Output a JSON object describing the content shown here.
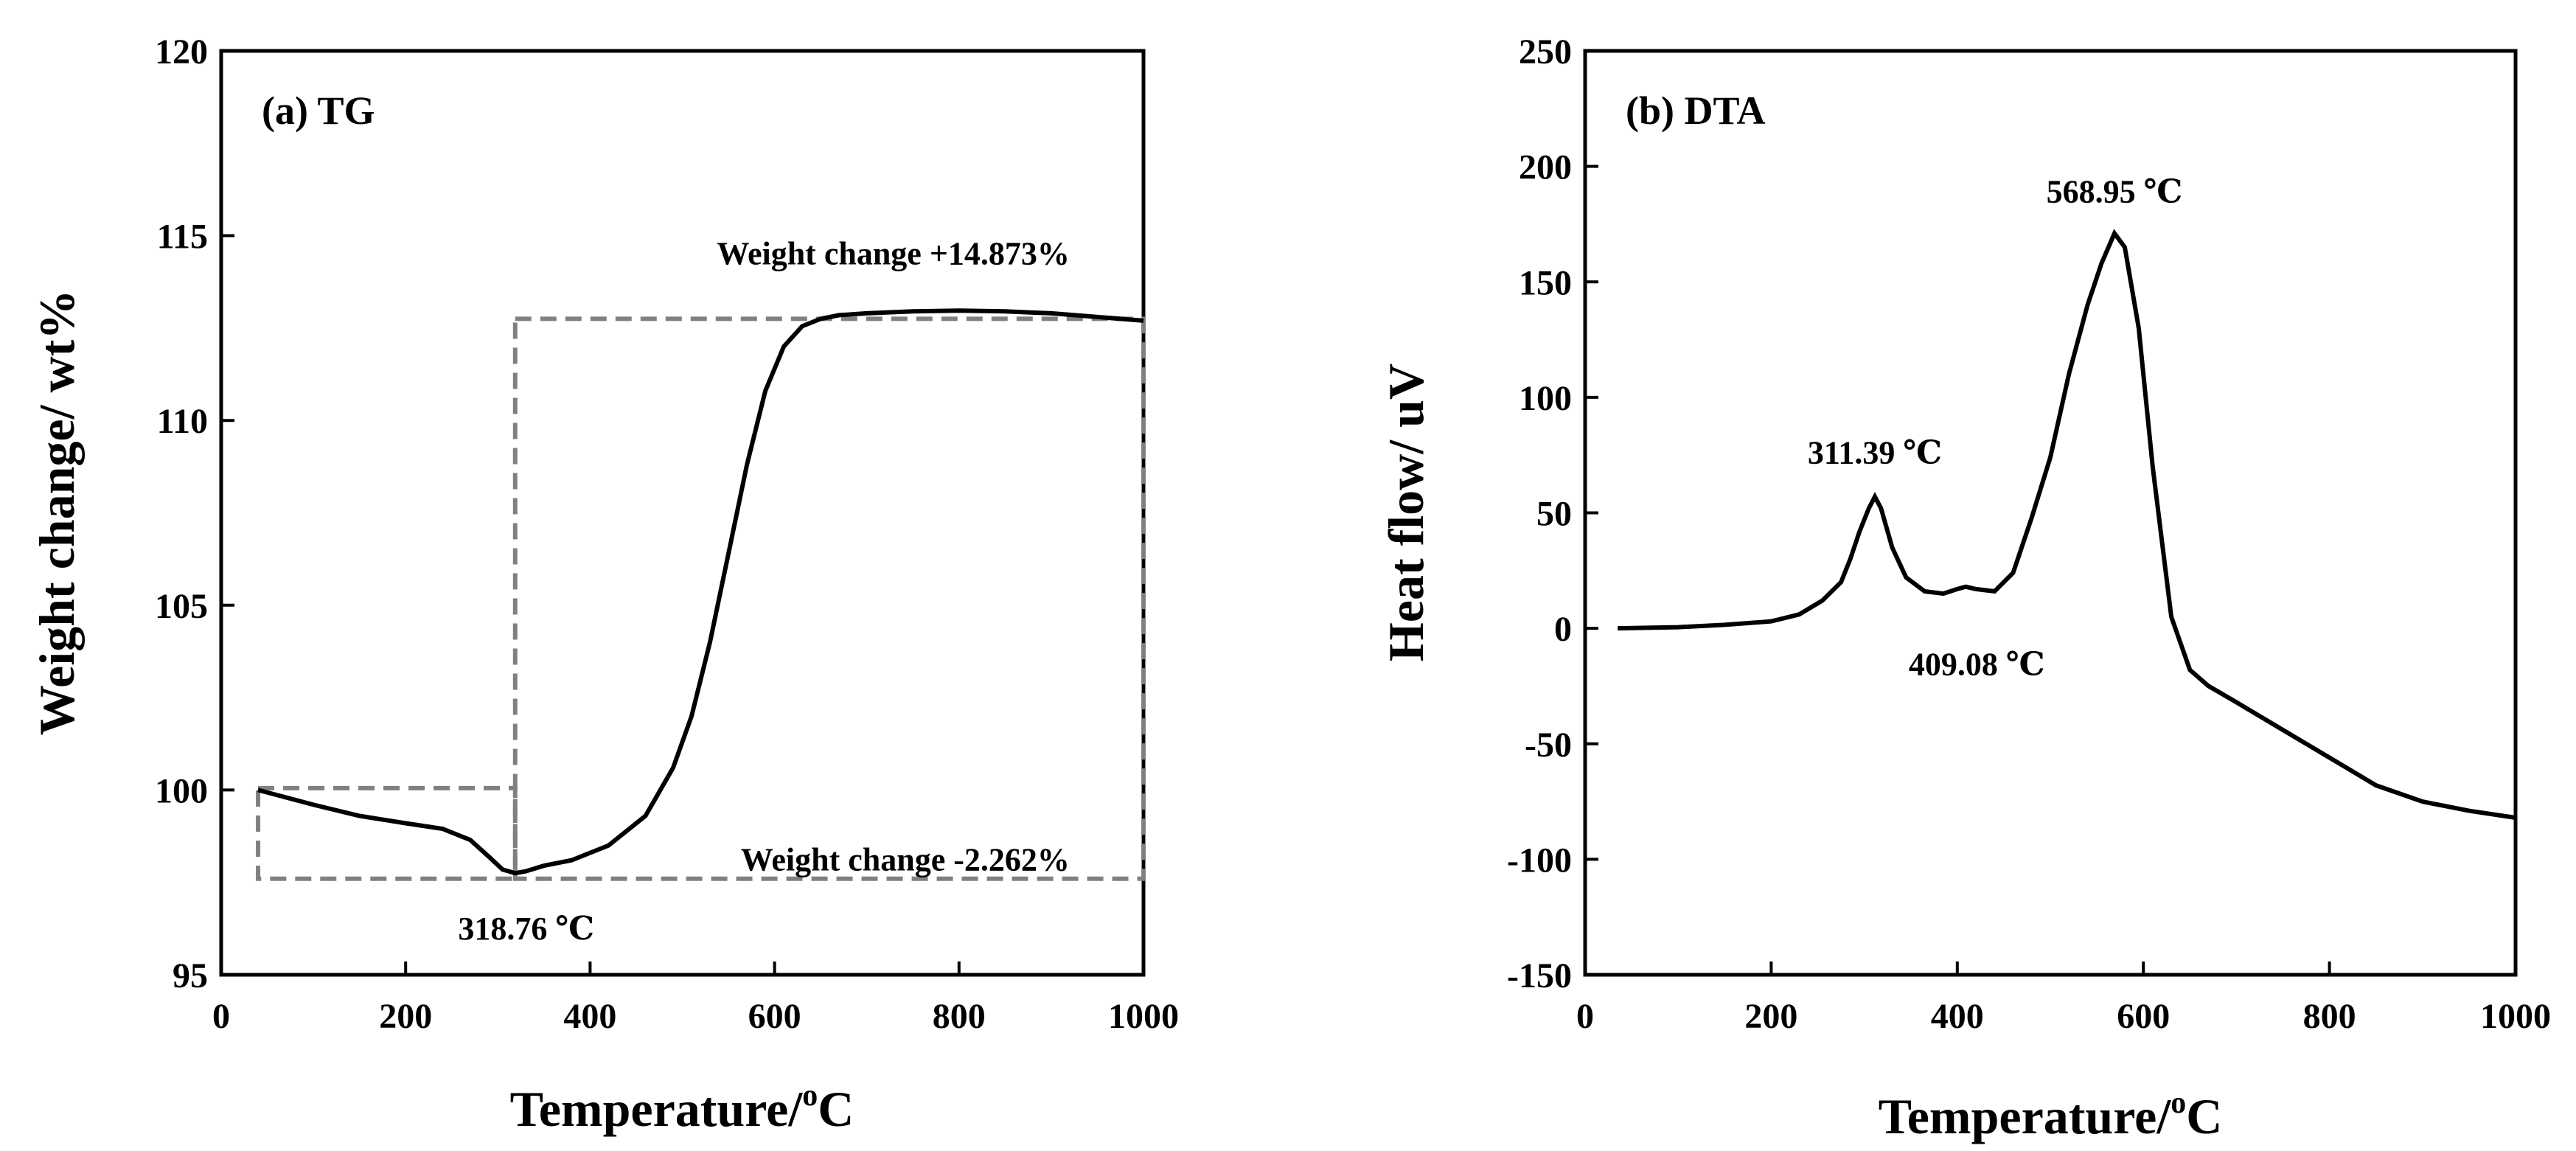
{
  "chart_data": [
    {
      "type": "line",
      "panel_label": "(a) TG",
      "xlabel_main": "Temperature/",
      "xlabel_sup": "o",
      "xlabel_unit": "C",
      "ylabel": "Weight change/ wt%",
      "xlim": [
        0,
        1000
      ],
      "ylim": [
        95,
        120
      ],
      "xticks": [
        0,
        200,
        400,
        600,
        800,
        1000
      ],
      "yticks": [
        95,
        100,
        105,
        110,
        115,
        120
      ],
      "grid": false,
      "legend": "none",
      "series": [
        {
          "name": "TG",
          "x": [
            40,
            100,
            150,
            200,
            240,
            270,
            290,
            305,
            318.76,
            330,
            350,
            380,
            420,
            460,
            490,
            510,
            530,
            550,
            570,
            590,
            610,
            630,
            650,
            670,
            700,
            750,
            800,
            850,
            900,
            950,
            1000
          ],
          "y": [
            100.0,
            99.6,
            99.3,
            99.1,
            98.95,
            98.65,
            98.2,
            97.85,
            97.75,
            97.8,
            97.95,
            98.1,
            98.5,
            99.3,
            100.6,
            102.0,
            104.0,
            106.4,
            108.8,
            110.8,
            112.0,
            112.55,
            112.75,
            112.85,
            112.9,
            112.95,
            112.97,
            112.95,
            112.9,
            112.8,
            112.7
          ]
        }
      ],
      "annotations": {
        "peak": {
          "label": "318.76 ℃",
          "x": 318.76,
          "y": 97.75
        },
        "gain": {
          "label": "Weight change +14.873%",
          "x": 920,
          "y": 114.5
        },
        "loss": {
          "label": "Weight change -2.262%",
          "x": 920,
          "y": 98.1
        }
      },
      "guide_boxes": [
        {
          "x0": 40,
          "x1": 318.76,
          "y0": 97.6,
          "y1": 100.05
        },
        {
          "x0": 318.76,
          "x1": 1000,
          "y0": 97.6,
          "y1": 112.75
        }
      ],
      "colors": {
        "line": "#000000",
        "guide": "#808080"
      }
    },
    {
      "type": "line",
      "panel_label": "(b) DTA",
      "xlabel_main": "Temperature/",
      "xlabel_sup": "o",
      "xlabel_unit": "C",
      "ylabel": "Heat flow/ uV",
      "xlim": [
        0,
        1000
      ],
      "ylim": [
        -150,
        250
      ],
      "xticks": [
        0,
        200,
        400,
        600,
        800,
        1000
      ],
      "yticks": [
        -150,
        -100,
        -50,
        0,
        50,
        100,
        150,
        200,
        250
      ],
      "grid": false,
      "legend": "none",
      "series": [
        {
          "name": "DTA",
          "x": [
            35,
            100,
            150,
            200,
            230,
            255,
            275,
            285,
            295,
            305,
            311.39,
            318,
            330,
            345,
            365,
            385,
            400,
            409.08,
            420,
            440,
            460,
            480,
            500,
            520,
            540,
            555,
            568.95,
            580,
            595,
            610,
            630,
            650,
            670,
            700,
            750,
            800,
            850,
            900,
            950,
            1000
          ],
          "y": [
            0,
            0.5,
            1.5,
            3,
            6,
            12,
            20,
            30,
            42,
            52,
            57,
            52,
            35,
            22,
            16,
            15,
            17,
            18,
            17,
            16,
            24,
            48,
            74,
            110,
            140,
            158,
            171,
            165,
            130,
            70,
            5,
            -18,
            -25,
            -32,
            -44,
            -56,
            -68,
            -75,
            -79,
            -82
          ]
        }
      ],
      "annotations": {
        "peak1": {
          "label": "311.39 ℃",
          "x": 311.39,
          "y": 57
        },
        "peak2": {
          "label": "409.08 ℃",
          "x": 409.08,
          "y": 18
        },
        "peak3": {
          "label": "568.95 ℃",
          "x": 568.95,
          "y": 171
        }
      },
      "colors": {
        "line": "#000000"
      }
    }
  ]
}
